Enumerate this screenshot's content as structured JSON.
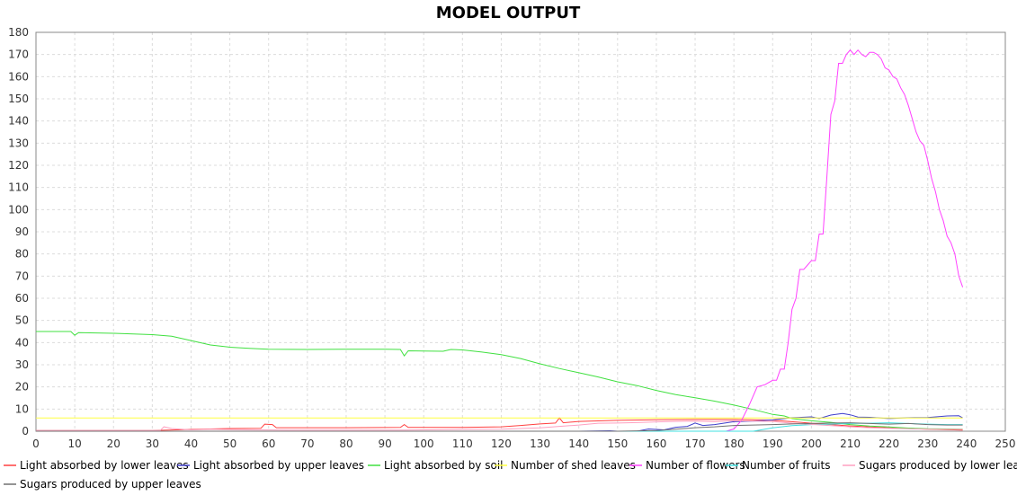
{
  "chart_data": {
    "type": "line",
    "title": "MODEL OUTPUT",
    "xlabel": "",
    "ylabel": "",
    "xlim": [
      0,
      250
    ],
    "ylim": [
      0,
      180
    ],
    "x_ticks": [
      0,
      10,
      20,
      30,
      40,
      50,
      60,
      70,
      80,
      90,
      100,
      110,
      120,
      130,
      140,
      150,
      160,
      170,
      180,
      190,
      200,
      210,
      220,
      230,
      240,
      250
    ],
    "y_ticks": [
      0,
      10,
      20,
      30,
      40,
      50,
      60,
      70,
      80,
      90,
      100,
      110,
      120,
      130,
      140,
      150,
      160,
      170,
      180
    ],
    "grid": true,
    "legend_position": "bottom",
    "series": [
      {
        "name": "Light absorbed by lower leaves",
        "color": "#ff4040",
        "points": [
          [
            0,
            0.3
          ],
          [
            30,
            0.3
          ],
          [
            40,
            0.8
          ],
          [
            50,
            1.2
          ],
          [
            58,
            1.3
          ],
          [
            59,
            3.2
          ],
          [
            61,
            3.0
          ],
          [
            62,
            1.6
          ],
          [
            70,
            1.6
          ],
          [
            80,
            1.6
          ],
          [
            94,
            1.7
          ],
          [
            95,
            3.0
          ],
          [
            96,
            1.7
          ],
          [
            110,
            1.7
          ],
          [
            120,
            2.0
          ],
          [
            125,
            2.6
          ],
          [
            130,
            3.3
          ],
          [
            134,
            3.7
          ],
          [
            135,
            6.0
          ],
          [
            136,
            3.8
          ],
          [
            140,
            4.4
          ],
          [
            150,
            4.9
          ],
          [
            160,
            5.2
          ],
          [
            170,
            5.3
          ],
          [
            180,
            5.3
          ],
          [
            190,
            5.0
          ],
          [
            200,
            3.6
          ],
          [
            210,
            2.4
          ],
          [
            220,
            1.5
          ],
          [
            230,
            0.9
          ],
          [
            239,
            0.5
          ]
        ]
      },
      {
        "name": "Light absorbed by upper leaves",
        "color": "#4040cc",
        "points": [
          [
            0,
            0
          ],
          [
            140,
            0
          ],
          [
            148,
            0.2
          ],
          [
            150,
            0
          ],
          [
            155,
            0
          ],
          [
            158,
            1.0
          ],
          [
            162,
            0.6
          ],
          [
            165,
            1.8
          ],
          [
            168,
            2.2
          ],
          [
            170,
            3.7
          ],
          [
            172,
            2.6
          ],
          [
            175,
            3.0
          ],
          [
            180,
            4.3
          ],
          [
            185,
            4.6
          ],
          [
            190,
            5.1
          ],
          [
            195,
            6.1
          ],
          [
            200,
            6.5
          ],
          [
            202,
            5.7
          ],
          [
            205,
            7.3
          ],
          [
            208,
            8.0
          ],
          [
            210,
            7.4
          ],
          [
            212,
            6.4
          ],
          [
            215,
            6.3
          ],
          [
            220,
            5.7
          ],
          [
            225,
            6.1
          ],
          [
            230,
            6.2
          ],
          [
            235,
            6.9
          ],
          [
            238,
            7.0
          ],
          [
            239,
            6.0
          ]
        ]
      },
      {
        "name": "Light absorbed by soil",
        "color": "#40e040",
        "points": [
          [
            0,
            45.0
          ],
          [
            9,
            45.0
          ],
          [
            10,
            43.3
          ],
          [
            11,
            44.5
          ],
          [
            20,
            44.2
          ],
          [
            30,
            43.6
          ],
          [
            35,
            42.9
          ],
          [
            40,
            40.9
          ],
          [
            45,
            38.9
          ],
          [
            50,
            37.9
          ],
          [
            55,
            37.4
          ],
          [
            60,
            37.0
          ],
          [
            70,
            36.9
          ],
          [
            80,
            37.0
          ],
          [
            90,
            37.0
          ],
          [
            94,
            36.9
          ],
          [
            95,
            34.0
          ],
          [
            96,
            36.3
          ],
          [
            100,
            36.2
          ],
          [
            105,
            36.1
          ],
          [
            107,
            36.9
          ],
          [
            110,
            36.7
          ],
          [
            115,
            35.7
          ],
          [
            120,
            34.6
          ],
          [
            125,
            32.8
          ],
          [
            130,
            30.4
          ],
          [
            135,
            28.3
          ],
          [
            140,
            26.4
          ],
          [
            145,
            24.5
          ],
          [
            150,
            22.3
          ],
          [
            155,
            20.6
          ],
          [
            160,
            18.4
          ],
          [
            165,
            16.5
          ],
          [
            170,
            15.1
          ],
          [
            175,
            13.6
          ],
          [
            180,
            11.8
          ],
          [
            185,
            9.8
          ],
          [
            190,
            7.6
          ],
          [
            193,
            6.9
          ],
          [
            195,
            5.7
          ],
          [
            200,
            4.7
          ],
          [
            205,
            4.0
          ],
          [
            210,
            3.0
          ],
          [
            215,
            2.3
          ],
          [
            220,
            1.9
          ],
          [
            225,
            1.4
          ],
          [
            230,
            1.1
          ],
          [
            235,
            1.0
          ],
          [
            239,
            0.9
          ]
        ]
      },
      {
        "name": "Number of shed leaves",
        "color": "#ffff40",
        "points": [
          [
            0,
            6.0
          ],
          [
            170,
            6.0
          ],
          [
            239,
            6.0
          ]
        ]
      },
      {
        "name": "Number of flowers",
        "color": "#ff40ff",
        "points": [
          [
            0,
            0
          ],
          [
            178,
            0
          ],
          [
            180,
            1
          ],
          [
            182,
            5
          ],
          [
            184,
            12
          ],
          [
            186,
            20
          ],
          [
            188,
            21
          ],
          [
            190,
            23
          ],
          [
            191,
            23
          ],
          [
            192,
            28
          ],
          [
            193,
            28
          ],
          [
            194,
            40
          ],
          [
            195,
            55
          ],
          [
            196,
            60
          ],
          [
            197,
            73
          ],
          [
            198,
            73
          ],
          [
            199,
            75
          ],
          [
            200,
            77
          ],
          [
            201,
            77
          ],
          [
            202,
            89
          ],
          [
            203,
            89
          ],
          [
            204,
            115
          ],
          [
            205,
            143
          ],
          [
            206,
            149
          ],
          [
            207,
            166
          ],
          [
            208,
            166
          ],
          [
            209,
            170
          ],
          [
            210,
            172
          ],
          [
            211,
            170
          ],
          [
            212,
            172
          ],
          [
            213,
            170
          ],
          [
            214,
            169
          ],
          [
            215,
            171
          ],
          [
            216,
            171
          ],
          [
            217,
            170
          ],
          [
            218,
            168
          ],
          [
            219,
            164
          ],
          [
            220,
            163
          ],
          [
            221,
            160
          ],
          [
            222,
            159
          ],
          [
            223,
            155
          ],
          [
            224,
            152
          ],
          [
            225,
            147
          ],
          [
            226,
            141
          ],
          [
            227,
            135
          ],
          [
            228,
            131
          ],
          [
            229,
            129
          ],
          [
            230,
            122
          ],
          [
            231,
            114
          ],
          [
            232,
            108
          ],
          [
            233,
            100
          ],
          [
            234,
            95
          ],
          [
            235,
            88
          ],
          [
            236,
            85
          ],
          [
            237,
            80
          ],
          [
            238,
            70
          ],
          [
            239,
            65
          ]
        ]
      },
      {
        "name": "Number of fruits",
        "color": "#40e0e0",
        "points": [
          [
            0,
            0
          ],
          [
            185,
            0
          ],
          [
            190,
            1.5
          ],
          [
            195,
            2.5
          ],
          [
            200,
            3.0
          ],
          [
            205,
            3.2
          ],
          [
            210,
            3.5
          ],
          [
            215,
            3.6
          ],
          [
            220,
            3.8
          ],
          [
            225,
            3.5
          ],
          [
            230,
            3.2
          ],
          [
            235,
            3.0
          ],
          [
            239,
            3.0
          ]
        ]
      },
      {
        "name": "Sugars produced by lower leaves",
        "color": "#ffa0c0",
        "points": [
          [
            0,
            0.3
          ],
          [
            32,
            0.3
          ],
          [
            33,
            2.0
          ],
          [
            35,
            1.2
          ],
          [
            40,
            0.6
          ],
          [
            45,
            0.9
          ],
          [
            55,
            0.6
          ],
          [
            65,
            0.5
          ],
          [
            80,
            0.5
          ],
          [
            95,
            0.5
          ],
          [
            110,
            0.8
          ],
          [
            120,
            0.9
          ],
          [
            130,
            1.5
          ],
          [
            135,
            2.2
          ],
          [
            140,
            2.8
          ],
          [
            145,
            3.6
          ],
          [
            150,
            3.7
          ],
          [
            155,
            3.9
          ],
          [
            160,
            4.2
          ],
          [
            165,
            4.4
          ],
          [
            170,
            4.6
          ],
          [
            175,
            4.3
          ],
          [
            180,
            4.7
          ],
          [
            185,
            4.6
          ],
          [
            190,
            4.4
          ],
          [
            195,
            3.6
          ],
          [
            200,
            3.1
          ],
          [
            205,
            2.5
          ],
          [
            210,
            2.0
          ],
          [
            215,
            1.6
          ],
          [
            220,
            1.3
          ],
          [
            225,
            1.1
          ],
          [
            230,
            0.9
          ],
          [
            239,
            0.8
          ]
        ]
      },
      {
        "name": "Sugars produced by upper leaves",
        "color": "#707070",
        "points": [
          [
            0,
            0
          ],
          [
            150,
            0
          ],
          [
            160,
            0.3
          ],
          [
            165,
            0.9
          ],
          [
            170,
            1.6
          ],
          [
            175,
            2.0
          ],
          [
            180,
            2.6
          ],
          [
            185,
            2.8
          ],
          [
            190,
            3.0
          ],
          [
            195,
            3.3
          ],
          [
            200,
            3.5
          ],
          [
            205,
            3.7
          ],
          [
            210,
            3.8
          ],
          [
            215,
            3.5
          ],
          [
            220,
            3.2
          ],
          [
            225,
            3.5
          ],
          [
            230,
            3.0
          ],
          [
            235,
            2.8
          ],
          [
            239,
            2.8
          ]
        ]
      }
    ]
  }
}
